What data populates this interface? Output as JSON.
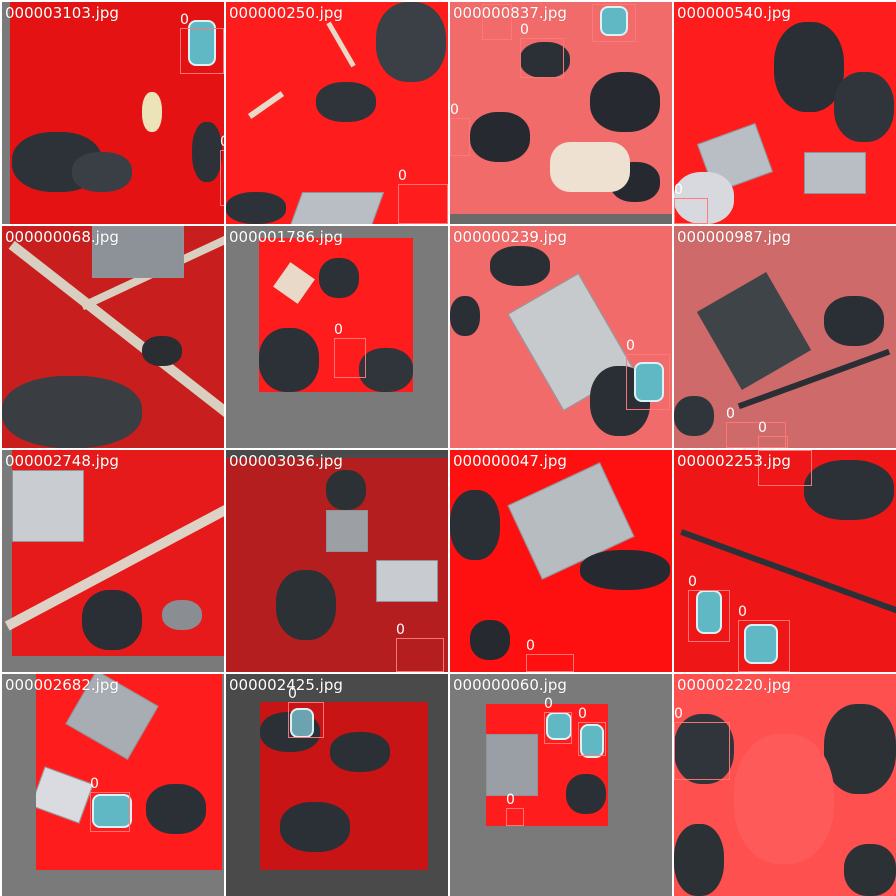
{
  "panel": {
    "title": "",
    "tiles": [
      {
        "filename": "000003103.jpg",
        "labels": [
          "0",
          "0"
        ]
      },
      {
        "filename": "000000250.jpg",
        "labels": [
          "0"
        ]
      },
      {
        "filename": "000000837.jpg",
        "labels": [
          "0",
          "0",
          "0",
          "0"
        ]
      },
      {
        "filename": "000000540.jpg",
        "labels": [
          "0"
        ]
      },
      {
        "filename": "000000068.jpg",
        "labels": []
      },
      {
        "filename": "000001786.jpg",
        "labels": [
          "0"
        ]
      },
      {
        "filename": "000000239.jpg",
        "labels": [
          "0"
        ]
      },
      {
        "filename": "000000987.jpg",
        "labels": [
          "0",
          "0"
        ]
      },
      {
        "filename": "000002748.jpg",
        "labels": []
      },
      {
        "filename": "000003036.jpg",
        "labels": [
          "0"
        ]
      },
      {
        "filename": "000000047.jpg",
        "labels": [
          "0"
        ]
      },
      {
        "filename": "000002253.jpg",
        "labels": [
          "0",
          "0",
          "0"
        ]
      },
      {
        "filename": "000002682.jpg",
        "labels": [
          "0"
        ]
      },
      {
        "filename": "000002425.jpg",
        "labels": [
          "0"
        ]
      },
      {
        "filename": "000000060.jpg",
        "labels": [
          "0",
          "0",
          "0"
        ]
      },
      {
        "filename": "000002220.jpg",
        "labels": [
          "0"
        ]
      }
    ]
  },
  "colors": {
    "mask_red": "#ff1a1a",
    "mask_dark": "#c81e1e",
    "mask_pink": "#f26b6b",
    "pad_gray": "#7a7a7a",
    "box_edge": "#ff7878"
  },
  "icons": {
    "tile_image": "aerial-image-icon",
    "detection_box": "bounding-box-icon"
  }
}
